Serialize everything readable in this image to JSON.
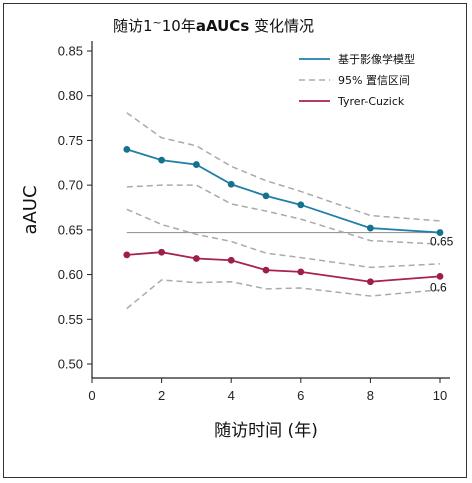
{
  "chart_data": {
    "type": "line",
    "title_prefix": "随访1",
    "title_tilde": "~",
    "title_mid": "10年",
    "title_bold": "aAUCs",
    "title_suffix": " 变化情况",
    "xlabel": "随访时间 (年)",
    "ylabel": "aAUC",
    "xlim": [
      0,
      10
    ],
    "ylim": [
      0.485,
      0.855
    ],
    "x_ticks": [
      0,
      2,
      4,
      6,
      8,
      10
    ],
    "y_ticks": [
      0.5,
      0.55,
      0.6,
      0.65,
      0.7,
      0.75,
      0.8,
      0.85
    ],
    "y_tick_labels": [
      "0.50",
      "0.55",
      "0.60",
      "0.65",
      "0.70",
      "0.75",
      "0.80",
      "0.85"
    ],
    "x": [
      1,
      2,
      3,
      4,
      5,
      6,
      8,
      10
    ],
    "series": [
      {
        "name": "基于影像学模型",
        "color": "#1f7fa8",
        "marker_color": "#16718e",
        "values": [
          0.74,
          0.728,
          0.723,
          0.701,
          0.688,
          0.678,
          0.652,
          0.647
        ]
      },
      {
        "name": "Tyrer-Cuzick",
        "color": "#a8224a",
        "marker_color": "#9c1f46",
        "values": [
          0.622,
          0.625,
          0.618,
          0.616,
          0.605,
          0.603,
          0.592,
          0.598
        ]
      }
    ],
    "ci_legend": "95% 置信区间",
    "ci_color": "#aaaaaa",
    "ci_bands": [
      {
        "upper": [
          0.781,
          0.753,
          0.744,
          0.721,
          0.705,
          0.693,
          0.666,
          0.66
        ],
        "lower": [
          0.698,
          0.7,
          0.7,
          0.679,
          0.671,
          0.662,
          0.638,
          0.634
        ]
      },
      {
        "upper": [
          0.673,
          0.656,
          0.645,
          0.637,
          0.624,
          0.619,
          0.608,
          0.612
        ],
        "lower": [
          0.562,
          0.594,
          0.591,
          0.592,
          0.584,
          0.585,
          0.576,
          0.583
        ]
      }
    ],
    "reference_line": {
      "value": 0.647,
      "color": "#999999"
    },
    "annotations": [
      {
        "text": "0.65",
        "x": 10,
        "y": 0.647
      },
      {
        "text": "0.6",
        "x": 10,
        "y": 0.598
      }
    ],
    "legend_position": "top-right",
    "grid": false
  }
}
